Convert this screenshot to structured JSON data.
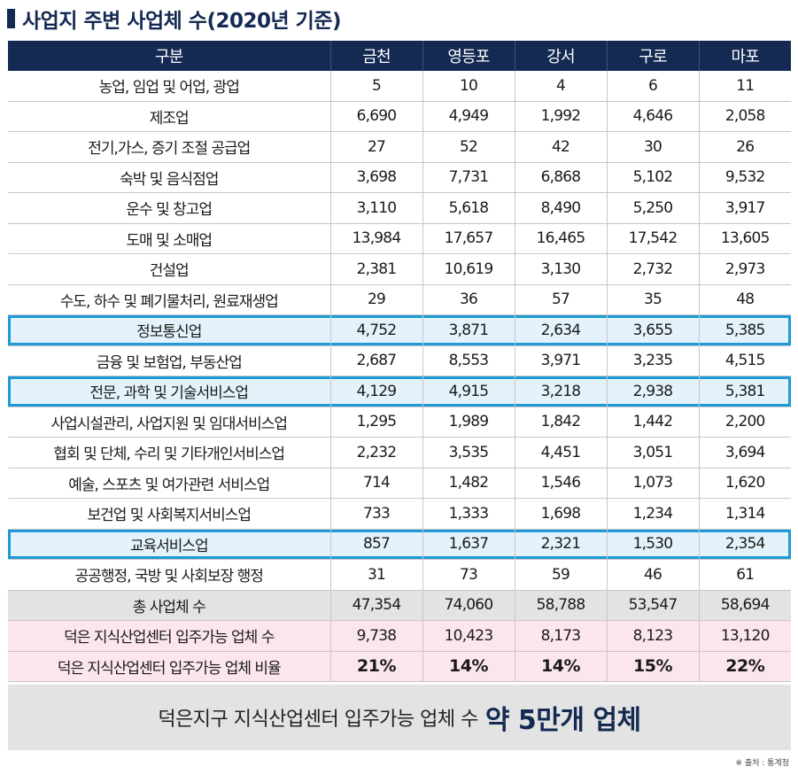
{
  "title": "사업지 주변 사업체 수(2020년 기준)",
  "header": [
    "구분",
    "금천",
    "영등포",
    "강서",
    "구로",
    "마포"
  ],
  "rows": [
    {
      "label": "농업, 임업 및 어업, 광업",
      "values": [
        "5",
        "10",
        "4",
        "6",
        "11"
      ],
      "style": "normal"
    },
    {
      "label": "제조업",
      "values": [
        "6,690",
        "4,949",
        "1,992",
        "4,646",
        "2,058"
      ],
      "style": "normal"
    },
    {
      "label": "전기,가스, 증기 조절 공급업",
      "values": [
        "27",
        "52",
        "42",
        "30",
        "26"
      ],
      "style": "normal"
    },
    {
      "label": "숙박 및 음식점업",
      "values": [
        "3,698",
        "7,731",
        "6,868",
        "5,102",
        "9,532"
      ],
      "style": "normal"
    },
    {
      "label": "운수 및 창고업",
      "values": [
        "3,110",
        "5,618",
        "8,490",
        "5,250",
        "3,917"
      ],
      "style": "normal"
    },
    {
      "label": "도매 및 소매업",
      "values": [
        "13,984",
        "17,657",
        "16,465",
        "17,542",
        "13,605"
      ],
      "style": "normal"
    },
    {
      "label": "건설업",
      "values": [
        "2,381",
        "10,619",
        "3,130",
        "2,732",
        "2,973"
      ],
      "style": "normal"
    },
    {
      "label": "수도, 하수 및 폐기물처리, 원료재생업",
      "values": [
        "29",
        "36",
        "57",
        "35",
        "48"
      ],
      "style": "normal"
    },
    {
      "label": "정보통신업",
      "values": [
        "4,752",
        "3,871",
        "2,634",
        "3,655",
        "5,385"
      ],
      "style": "highlight"
    },
    {
      "label": "금융 및 보험업, 부동산업",
      "values": [
        "2,687",
        "8,553",
        "3,971",
        "3,235",
        "4,515"
      ],
      "style": "normal"
    },
    {
      "label": "전문, 과학 및 기술서비스업",
      "values": [
        "4,129",
        "4,915",
        "3,218",
        "2,938",
        "5,381"
      ],
      "style": "highlight"
    },
    {
      "label": "사업시설관리, 사업지원 및 임대서비스업",
      "values": [
        "1,295",
        "1,989",
        "1,842",
        "1,442",
        "2,200"
      ],
      "style": "normal"
    },
    {
      "label": "협회 및 단체, 수리 및 기타개인서비스업",
      "values": [
        "2,232",
        "3,535",
        "4,451",
        "3,051",
        "3,694"
      ],
      "style": "normal"
    },
    {
      "label": "예술, 스포츠 및 여가관련 서비스업",
      "values": [
        "714",
        "1,482",
        "1,546",
        "1,073",
        "1,620"
      ],
      "style": "normal"
    },
    {
      "label": "보건업 및 사회복지서비스업",
      "values": [
        "733",
        "1,333",
        "1,698",
        "1,234",
        "1,314"
      ],
      "style": "normal"
    },
    {
      "label": "교육서비스업",
      "values": [
        "857",
        "1,637",
        "2,321",
        "1,530",
        "2,354"
      ],
      "style": "highlight"
    },
    {
      "label": "공공행정, 국방 및 사회보장 행정",
      "values": [
        "31",
        "73",
        "59",
        "46",
        "61"
      ],
      "style": "normal"
    },
    {
      "label": "총 사업체 수",
      "values": [
        "47,354",
        "74,060",
        "58,788",
        "53,547",
        "58,694"
      ],
      "style": "total"
    },
    {
      "label": "덕은 지식산업센터 입주가능 업체 수",
      "values": [
        "9,738",
        "10,423",
        "8,173",
        "8,123",
        "13,120"
      ],
      "style": "pink"
    },
    {
      "label": "덕은 지식산업센터 입주가능 업체 비율",
      "values": [
        "21%",
        "14%",
        "14%",
        "15%",
        "22%"
      ],
      "style": "pink-pct"
    }
  ],
  "summary": {
    "text": "덕은지구 지식산업센터 입주가능 업체 수",
    "strong": "약 5만개 업체"
  },
  "source": "※ 출처 : 통계청",
  "colors": {
    "header_bg": "#142a52",
    "highlight_border": "#1e9ad6",
    "highlight_bg": "#e4f3fb",
    "total_bg": "#e3e3e3",
    "pink_bg": "#fbe6ee"
  }
}
